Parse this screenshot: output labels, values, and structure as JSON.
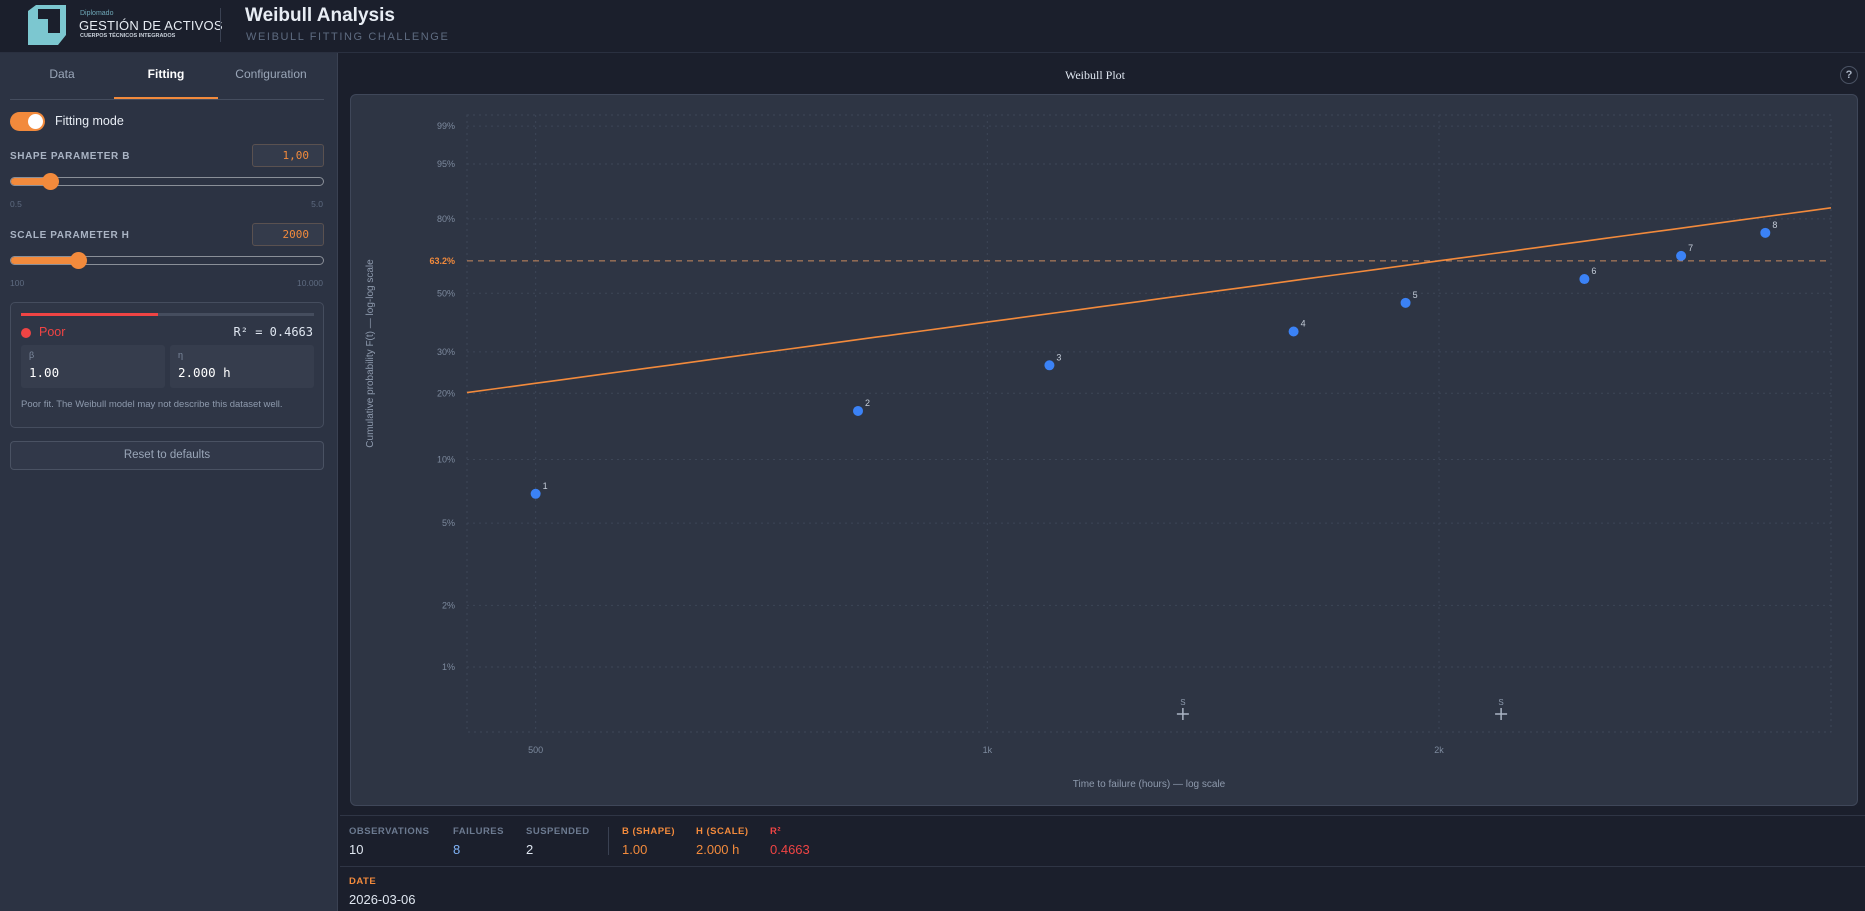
{
  "header": {
    "logo_small": "Diplomado",
    "logo_main": "GESTIÓN DE ACTIVOS",
    "logo_sub": "CUERPOS TÉCNICOS INTEGRADOS",
    "title": "Weibull Analysis",
    "subtitle": "WEIBULL FITTING CHALLENGE"
  },
  "sidebar": {
    "tabs": [
      {
        "label": "Data"
      },
      {
        "label": "Fitting",
        "active": true
      },
      {
        "label": "Configuration"
      }
    ],
    "fitting_mode_label": "Fitting mode",
    "fitting_mode_on": true,
    "shape": {
      "label": "SHAPE PARAMETER B",
      "value": "1,00",
      "min": "0.5",
      "max": "5.0",
      "fraction": 0.11
    },
    "scale": {
      "label": "SCALE PARAMETER H",
      "value": "2000",
      "min": "100",
      "max": "10.000",
      "fraction": 0.2
    },
    "result": {
      "quality": "Poor",
      "quality_fraction": 0.4663,
      "r2_text": "R² = 0.4663",
      "beta_label": "β",
      "beta_value": "1.00",
      "eta_label": "η",
      "eta_value": "2.000 h",
      "message": "Poor fit. The Weibull model may not describe this dataset well."
    },
    "reset_label": "Reset to defaults"
  },
  "main": {
    "title": "Weibull Plot",
    "help_label": "?",
    "stats": {
      "observations_label": "OBSERVATIONS",
      "observations": "10",
      "failures_label": "FAILURES",
      "failures": "8",
      "suspended_label": "SUSPENDED",
      "suspended": "2",
      "shape_label": "B (SHAPE)",
      "shape": "1.00",
      "scale_label": "H (SCALE)",
      "scale": "2.000 h",
      "r2_label": "R²",
      "r2": "0.4663"
    },
    "date_label": "DATE",
    "date": "2026-03-06"
  },
  "colors": {
    "accent": "#f28a3c",
    "point": "#3b82f6",
    "poor": "#ef4444",
    "bg": "#1b1f2c",
    "panel": "#2c3343"
  },
  "chart_data": {
    "type": "scatter",
    "title": "Weibull Plot",
    "xlabel": "Time to failure (hours) — log scale",
    "ylabel": "Cumulative probability F(t) — log-log scale",
    "xscale": "log",
    "yscale": "weibull",
    "xlim": [
      450,
      3650
    ],
    "ylim": [
      0.48,
      99.46
    ],
    "xticks": [
      {
        "v": 500,
        "label": "500"
      },
      {
        "v": 1000,
        "label": "1k"
      },
      {
        "v": 2000,
        "label": "2k"
      }
    ],
    "yticks": [
      {
        "v": 99,
        "label": "99%"
      },
      {
        "v": 95,
        "label": "95%"
      },
      {
        "v": 80,
        "label": "80%"
      },
      {
        "v": 50,
        "label": "50%"
      },
      {
        "v": 30,
        "label": "30%"
      },
      {
        "v": 20,
        "label": "20%"
      },
      {
        "v": 10,
        "label": "10%"
      },
      {
        "v": 5,
        "label": "5%"
      },
      {
        "v": 2,
        "label": "2%"
      },
      {
        "v": 1,
        "label": "1%"
      }
    ],
    "reference_line": {
      "v": 63.2,
      "label": "63.2%"
    },
    "failures": [
      {
        "label": "1",
        "t": 500,
        "F": 6.9
      },
      {
        "label": "2",
        "t": 820,
        "F": 16.7
      },
      {
        "label": "3",
        "t": 1100,
        "F": 26.4
      },
      {
        "label": "4",
        "t": 1600,
        "F": 36.2
      },
      {
        "label": "5",
        "t": 1900,
        "F": 46.3
      },
      {
        "label": "6",
        "t": 2500,
        "F": 55.7
      },
      {
        "label": "7",
        "t": 2900,
        "F": 65.3
      },
      {
        "label": "8",
        "t": 3300,
        "F": 74.7
      }
    ],
    "suspensions": [
      {
        "label": "S",
        "t": 1350
      },
      {
        "label": "S",
        "t": 2200
      }
    ],
    "fit": {
      "beta": 1.0,
      "eta": 2000
    }
  }
}
